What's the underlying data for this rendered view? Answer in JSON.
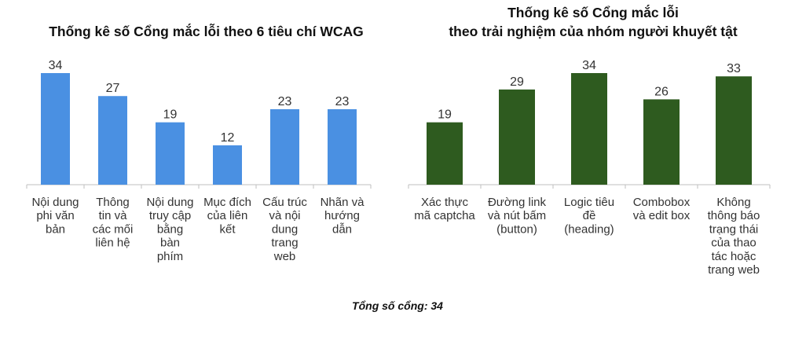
{
  "colors": {
    "left_bar": "#4a90e2",
    "right_bar": "#2e5b1f",
    "axis": "#bfbfbf"
  },
  "chart_data": [
    {
      "type": "bar",
      "title": "Thống kê số Cổng mắc lỗi theo 6 tiêu chí WCAG",
      "categories": [
        [
          "Nội dung",
          "phi văn",
          "bản"
        ],
        [
          "Thông",
          "tin và",
          "các mối",
          "liên hệ"
        ],
        [
          "Nội dung",
          "truy cập",
          "bằng",
          "bàn",
          "phím"
        ],
        [
          "Mục đích",
          "của liên",
          "kết"
        ],
        [
          "Cấu trúc",
          "và nội",
          "dung",
          "trang",
          "web"
        ],
        [
          "Nhãn và",
          "hướng",
          "dẫn"
        ]
      ],
      "values": [
        34,
        27,
        19,
        12,
        23,
        23
      ],
      "ylim": [
        0,
        34
      ],
      "grid": false,
      "legend": "none"
    },
    {
      "type": "bar",
      "title_lines": [
        "Thống kê số Cổng mắc lỗi",
        "theo trải nghiệm của nhóm người khuyết tật"
      ],
      "categories": [
        [
          "Xác thực",
          "mã captcha"
        ],
        [
          "Đường link",
          "và nút bấm",
          "(button)"
        ],
        [
          "Logic tiêu",
          "đề",
          "(heading)"
        ],
        [
          "Combobox",
          "và edit box"
        ],
        [
          "Không",
          "thông báo",
          "trạng thái",
          "của thao",
          "tác hoặc",
          "trang web"
        ]
      ],
      "values": [
        19,
        29,
        34,
        26,
        33
      ],
      "ylim": [
        0,
        34
      ],
      "grid": false,
      "legend": "none"
    }
  ],
  "footer": "Tổng số cổng: 34"
}
